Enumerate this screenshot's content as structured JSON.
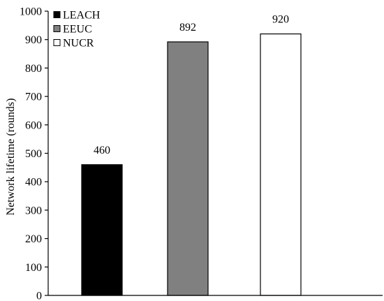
{
  "chart_data": {
    "type": "bar",
    "categories": [
      "LEACH",
      "EEUC",
      "NUCR"
    ],
    "series": [
      {
        "values": [
          460,
          892,
          920
        ],
        "colors": [
          "#000000",
          "#808080",
          "#ffffff"
        ]
      }
    ],
    "data_labels": [
      "460",
      "892",
      "920"
    ],
    "ylabel": "Network lifetime (rounds)",
    "xlabel": "",
    "ylim": [
      0,
      1000
    ],
    "yticks": [
      0,
      100,
      200,
      300,
      400,
      500,
      600,
      700,
      800,
      900,
      1000
    ],
    "grid": false,
    "legend": {
      "placement": "top-left",
      "entries": [
        {
          "label": "LEACH",
          "color": "#000000"
        },
        {
          "label": "EEUC",
          "color": "#808080"
        },
        {
          "label": "NUCR",
          "color": "#ffffff"
        }
      ]
    }
  }
}
